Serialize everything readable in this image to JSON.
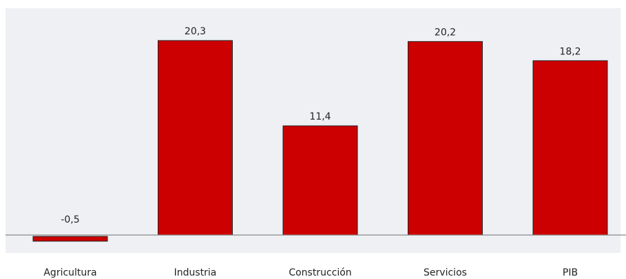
{
  "chart_data": {
    "type": "bar",
    "title": "",
    "xlabel": "",
    "ylabel": "",
    "categories": [
      "Agricultura",
      "Industria",
      "Construcción",
      "Servicios",
      "PIB"
    ],
    "values": [
      -0.5,
      20.3,
      11.4,
      20.2,
      18.2
    ],
    "value_labels": [
      "-0,5",
      "20,3",
      "11,4",
      "20,2",
      "18,2"
    ],
    "grid": false,
    "legend": "none",
    "colors": {
      "bar": "#cc0000",
      "plot_background": "#eef0f4",
      "baseline": "#888888"
    }
  }
}
